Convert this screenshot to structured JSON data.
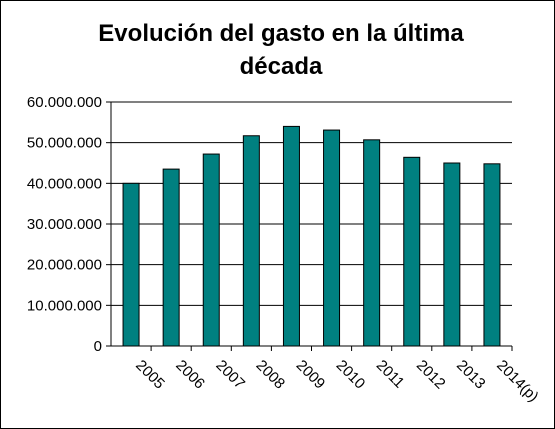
{
  "chart_data": {
    "type": "bar",
    "title_line1": "Evolución del gasto en la última",
    "title_line2": "década",
    "categories": [
      "2005",
      "2006",
      "2007",
      "2008",
      "2009",
      "2010",
      "2011",
      "2012",
      "2013",
      "2014(p)"
    ],
    "values": [
      40000000,
      43500000,
      47200000,
      51700000,
      54000000,
      53100000,
      50700000,
      46400000,
      45000000,
      44800000
    ],
    "ylim": [
      0,
      60000000
    ],
    "yticks": [
      "0",
      "10.000.000",
      "20.000.000",
      "30.000.000",
      "40.000.000",
      "50.000.000",
      "60.000.000"
    ],
    "grid": true,
    "legend": false,
    "colors": {
      "bar": "#008080",
      "bar_stroke": "#000000",
      "grid": "#000000"
    }
  }
}
